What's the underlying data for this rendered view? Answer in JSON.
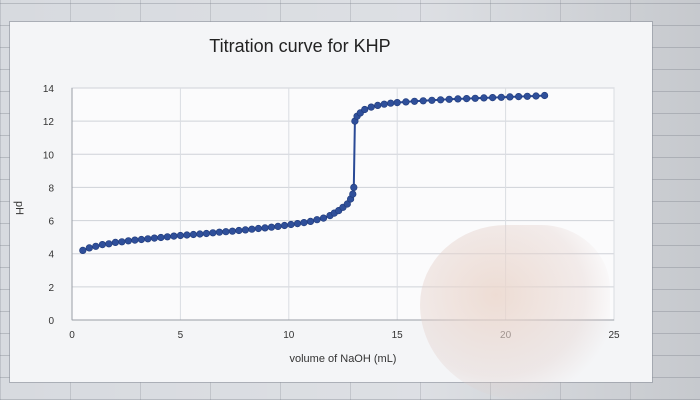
{
  "chart_data": {
    "type": "scatter",
    "title": "Titration curve for KHP",
    "xlabel": "volume of NaOH (mL)",
    "ylabel": "pH",
    "xlim": [
      0,
      25
    ],
    "ylim": [
      0,
      14
    ],
    "x_ticks": [
      0,
      5,
      10,
      15,
      20,
      25
    ],
    "y_ticks": [
      0,
      2,
      4,
      6,
      8,
      10,
      12,
      14
    ],
    "grid": true,
    "legend": "none",
    "marker_color": "#2f4f9a",
    "line_color": "#2a4a96",
    "series": [
      {
        "x": [
          0.5,
          0.8,
          1.1,
          1.4,
          1.7,
          2.0,
          2.3,
          2.6,
          2.9,
          3.2,
          3.5,
          3.8,
          4.1,
          4.4,
          4.7,
          5.0,
          5.3,
          5.6,
          5.9,
          6.2,
          6.5,
          6.8,
          7.1,
          7.4,
          7.7,
          8.0,
          8.3,
          8.6,
          8.9,
          9.2,
          9.5,
          9.8,
          10.1,
          10.4,
          10.7,
          11.0,
          11.3,
          11.6,
          11.9,
          12.1,
          12.3,
          12.5,
          12.7,
          12.85,
          12.95,
          13.0,
          13.05,
          13.15,
          13.3,
          13.5,
          13.8,
          14.1,
          14.4,
          14.7,
          15.0,
          15.4,
          15.8,
          16.2,
          16.6,
          17.0,
          17.4,
          17.8,
          18.2,
          18.6,
          19.0,
          19.4,
          19.8,
          20.2,
          20.6,
          21.0,
          21.4,
          21.8
        ],
        "y": [
          4.2,
          4.35,
          4.45,
          4.55,
          4.6,
          4.68,
          4.72,
          4.78,
          4.82,
          4.86,
          4.9,
          4.94,
          4.98,
          5.02,
          5.06,
          5.1,
          5.13,
          5.16,
          5.19,
          5.22,
          5.26,
          5.3,
          5.33,
          5.36,
          5.4,
          5.44,
          5.48,
          5.52,
          5.56,
          5.6,
          5.65,
          5.7,
          5.76,
          5.82,
          5.88,
          5.95,
          6.05,
          6.15,
          6.3,
          6.45,
          6.6,
          6.8,
          7.0,
          7.3,
          7.6,
          8.0,
          12.0,
          12.3,
          12.5,
          12.7,
          12.85,
          12.95,
          13.02,
          13.08,
          13.12,
          13.16,
          13.2,
          13.23,
          13.26,
          13.29,
          13.32,
          13.34,
          13.36,
          13.38,
          13.4,
          13.42,
          13.44,
          13.46,
          13.48,
          13.5,
          13.52,
          13.55
        ]
      }
    ]
  }
}
